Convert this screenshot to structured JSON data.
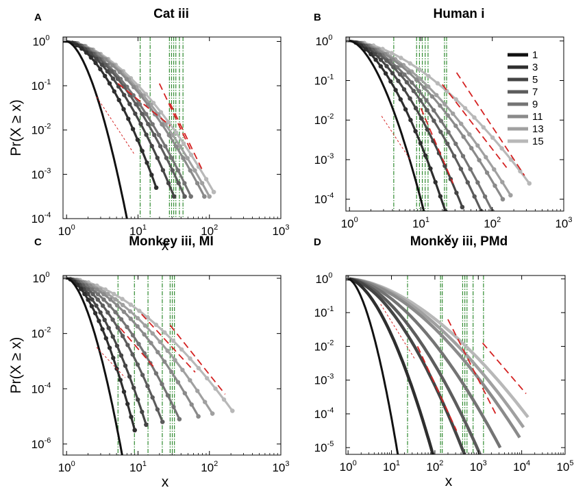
{
  "figure": {
    "palette": {
      "1": "#111111",
      "3": "#2e2e2e",
      "5": "#454545",
      "7": "#5c5c5c",
      "9": "#747474",
      "11": "#8a8a8a",
      "13": "#a0a0a0",
      "15": "#b8b8b8"
    },
    "fit_color": "#d42020",
    "vline_color": "#2f8a2f",
    "legend": [
      "1",
      "3",
      "5",
      "7",
      "9",
      "11",
      "13",
      "15"
    ]
  },
  "chart_data": [
    {
      "type": "line",
      "panel": "A",
      "title": "Cat iii",
      "xlabel": "x",
      "ylabel": "Pr(X ≥ x)",
      "xscale": "log",
      "yscale": "log",
      "xlim_exp": [
        -0.05,
        3
      ],
      "ylim_exp": [
        -4,
        0.1
      ],
      "xticks": [
        "0",
        "1",
        "2",
        "3"
      ],
      "yticks": [
        "0",
        "-1",
        "-2",
        "-3",
        "-4"
      ],
      "legend_shown": false,
      "vlines_log": [
        1.03,
        1.17,
        1.44,
        1.47,
        1.5,
        1.53,
        1.58,
        1.63
      ],
      "fits_log": [
        {
          "from": [
            0.42,
            -1.25
          ],
          "to": [
            0.95,
            -2.55
          ],
          "style": "thin-dashed"
        },
        {
          "from": [
            0.72,
            -0.95
          ],
          "to": [
            1.45,
            -1.9
          ],
          "style": "dashed"
        },
        {
          "from": [
            1.3,
            -0.95
          ],
          "to": [
            1.75,
            -2.5
          ],
          "style": "dashed"
        },
        {
          "from": [
            1.45,
            -1.4
          ],
          "to": [
            1.9,
            -2.9
          ],
          "style": "dashed"
        }
      ],
      "series": [
        {
          "label": "1",
          "x_max": 7,
          "y_end_exp": -4.0,
          "markers": false
        },
        {
          "label": "3",
          "x_max": 18,
          "y_end_exp": -3.3,
          "markers": true
        },
        {
          "label": "5",
          "x_max": 32,
          "y_end_exp": -3.5,
          "markers": true
        },
        {
          "label": "7",
          "x_max": 45,
          "y_end_exp": -3.5,
          "markers": true
        },
        {
          "label": "9",
          "x_max": 55,
          "y_end_exp": -3.5,
          "markers": true
        },
        {
          "label": "11",
          "x_max": 85,
          "y_end_exp": -3.5,
          "markers": true
        },
        {
          "label": "13",
          "x_max": 100,
          "y_end_exp": -3.5,
          "markers": true
        },
        {
          "label": "15",
          "x_max": 115,
          "y_end_exp": -3.4,
          "markers": true
        }
      ]
    },
    {
      "type": "line",
      "panel": "B",
      "title": "Human i",
      "xlabel": "x",
      "ylabel": "",
      "xscale": "log",
      "yscale": "log",
      "xlim_exp": [
        -0.05,
        3
      ],
      "ylim_exp": [
        -4.3,
        0.1
      ],
      "xticks": [
        "0",
        "1",
        "2",
        "3"
      ],
      "yticks": [
        "0",
        "-1",
        "-2",
        "-3",
        "-4"
      ],
      "legend_shown": true,
      "vlines_log": [
        0.62,
        0.94,
        0.98,
        1.02,
        1.06,
        1.1,
        1.33,
        1.36
      ],
      "fits_log": [
        {
          "from": [
            0.45,
            -1.9
          ],
          "to": [
            0.85,
            -3.0
          ],
          "style": "thin-dashed"
        },
        {
          "from": [
            1.0,
            -1.7
          ],
          "to": [
            1.45,
            -3.6
          ],
          "style": "dashed"
        },
        {
          "from": [
            1.3,
            -1.1
          ],
          "to": [
            2.2,
            -3.2
          ],
          "style": "dashed"
        },
        {
          "from": [
            1.5,
            -0.8
          ],
          "to": [
            2.45,
            -3.4
          ],
          "style": "dashed"
        }
      ],
      "series": [
        {
          "label": "1",
          "x_max": 11,
          "y_end_exp": -4.3,
          "markers": false
        },
        {
          "label": "3",
          "x_max": 22,
          "y_end_exp": -4.3,
          "markers": true
        },
        {
          "label": "5",
          "x_max": 38,
          "y_end_exp": -4.2,
          "markers": true
        },
        {
          "label": "7",
          "x_max": 70,
          "y_end_exp": -4.3,
          "markers": true
        },
        {
          "label": "9",
          "x_max": 100,
          "y_end_exp": -4.3,
          "markers": true
        },
        {
          "label": "11",
          "x_max": 140,
          "y_end_exp": -4.0,
          "markers": true
        },
        {
          "label": "13",
          "x_max": 180,
          "y_end_exp": -3.9,
          "markers": true
        },
        {
          "label": "15",
          "x_max": 330,
          "y_end_exp": -3.6,
          "markers": true
        }
      ]
    },
    {
      "type": "line",
      "panel": "C",
      "title": "Monkey iii, MI",
      "xlabel": "x",
      "ylabel": "Pr(X ≥ x)",
      "xscale": "log",
      "yscale": "log",
      "xlim_exp": [
        -0.05,
        3
      ],
      "ylim_exp": [
        -6.4,
        0.1
      ],
      "xticks": [
        "0",
        "1",
        "2",
        "3"
      ],
      "yticks": [
        "0",
        "-2",
        "-4",
        "-6"
      ],
      "legend_shown": false,
      "vlines_log": [
        0.72,
        0.95,
        1.14,
        1.34,
        1.45,
        1.48,
        1.51
      ],
      "fits_log": [
        {
          "from": [
            0.42,
            -2.5
          ],
          "to": [
            0.82,
            -3.6
          ],
          "style": "thin-dashed"
        },
        {
          "from": [
            0.75,
            -1.8
          ],
          "to": [
            1.25,
            -3.3
          ],
          "style": "dashed"
        },
        {
          "from": [
            1.05,
            -1.3
          ],
          "to": [
            1.8,
            -3.4
          ],
          "style": "dashed"
        },
        {
          "from": [
            1.45,
            -1.7
          ],
          "to": [
            2.22,
            -4.2
          ],
          "style": "dashed"
        }
      ],
      "series": [
        {
          "label": "1",
          "x_max": 6,
          "y_end_exp": -6.4,
          "markers": false
        },
        {
          "label": "3",
          "x_max": 9,
          "y_end_exp": -5.5,
          "markers": true
        },
        {
          "label": "5",
          "x_max": 13,
          "y_end_exp": -5.3,
          "markers": true
        },
        {
          "label": "7",
          "x_max": 22,
          "y_end_exp": -5.2,
          "markers": true
        },
        {
          "label": "9",
          "x_max": 38,
          "y_end_exp": -5.1,
          "markers": true
        },
        {
          "label": "11",
          "x_max": 70,
          "y_end_exp": -5.0,
          "markers": true
        },
        {
          "label": "13",
          "x_max": 110,
          "y_end_exp": -4.9,
          "markers": true
        },
        {
          "label": "15",
          "x_max": 210,
          "y_end_exp": -4.8,
          "markers": true
        }
      ]
    },
    {
      "type": "line",
      "panel": "D",
      "title": "Monkey iii, PMd",
      "xlabel": "x",
      "ylabel": "",
      "xscale": "log",
      "yscale": "log",
      "xlim_exp": [
        -0.05,
        5
      ],
      "ylim_exp": [
        -5.2,
        0.1
      ],
      "xticks": [
        "0",
        "1",
        "2",
        "3",
        "4",
        "5"
      ],
      "yticks": [
        "0",
        "-1",
        "-2",
        "-3",
        "-4",
        "-5"
      ],
      "legend_shown": false,
      "vlines_log": [
        1.37,
        2.13,
        2.17,
        2.64,
        2.69,
        2.74,
        2.88,
        3.12
      ],
      "fits_log": [
        {
          "from": [
            0.75,
            -0.75
          ],
          "to": [
            1.55,
            -2.4
          ],
          "style": "thin-dashed"
        },
        {
          "from": [
            1.6,
            -2.0
          ],
          "to": [
            2.5,
            -4.5
          ],
          "style": "dashed"
        },
        {
          "from": [
            2.3,
            -1.2
          ],
          "to": [
            3.4,
            -4.0
          ],
          "style": "dashed"
        },
        {
          "from": [
            3.1,
            -1.9
          ],
          "to": [
            4.1,
            -3.4
          ],
          "style": "dashed"
        }
      ],
      "series": [
        {
          "label": "1",
          "x_max": 14,
          "y_end_exp": -5.2,
          "markers": false
        },
        {
          "label": "3",
          "x_max": 90,
          "y_end_exp": -5.2,
          "markers": false
        },
        {
          "label": "5",
          "x_max": 480,
          "y_end_exp": -5.2,
          "markers": false
        },
        {
          "label": "7",
          "x_max": 1100,
          "y_end_exp": -5.2,
          "markers": false
        },
        {
          "label": "9",
          "x_max": 3200,
          "y_end_exp": -5.0,
          "markers": false
        },
        {
          "label": "11",
          "x_max": 9000,
          "y_end_exp": -4.7,
          "markers": false
        },
        {
          "label": "13",
          "x_max": 11000,
          "y_end_exp": -4.4,
          "markers": false
        },
        {
          "label": "15",
          "x_max": 14000,
          "y_end_exp": -4.1,
          "markers": false
        }
      ]
    }
  ],
  "panel_layout_labels": [
    "A",
    "B",
    "C",
    "D"
  ]
}
